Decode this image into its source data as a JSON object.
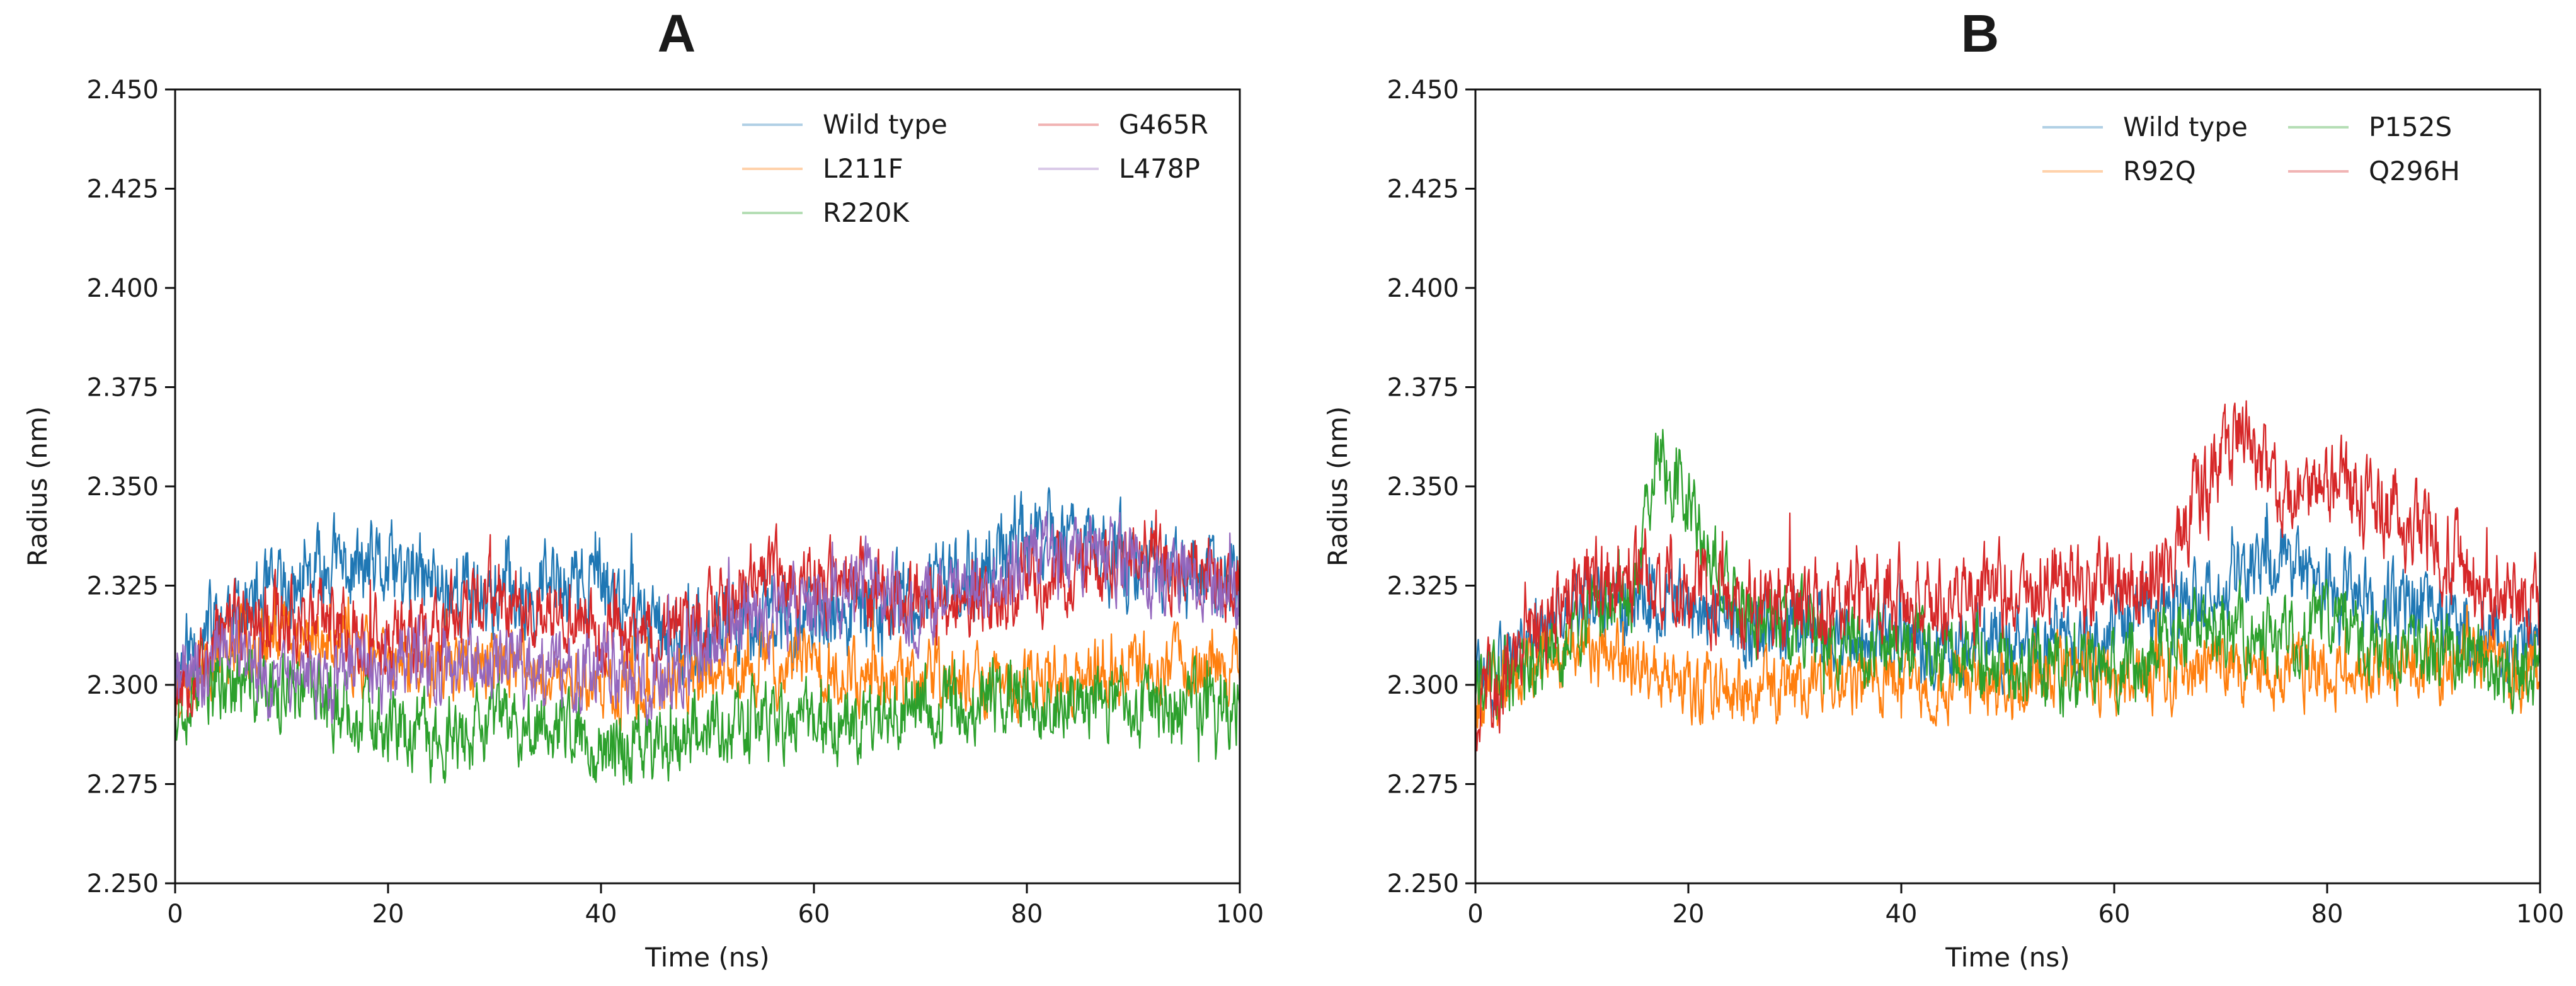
{
  "figure": {
    "description_labels": [
      "A",
      "B"
    ]
  },
  "chart_data": [
    {
      "type": "line",
      "panel_label": "A",
      "title": "",
      "xlabel": "Time (ns)",
      "ylabel": "Radius (nm)",
      "xlim": [
        0,
        100
      ],
      "ylim": [
        2.25,
        2.45
      ],
      "xticks": [
        0,
        20,
        40,
        60,
        80,
        100
      ],
      "xtick_labels": [
        "0",
        "20",
        "40",
        "60",
        "80",
        "100"
      ],
      "yticks": [
        2.25,
        2.275,
        2.3,
        2.325,
        2.35,
        2.375,
        2.4,
        2.425,
        2.45
      ],
      "ytick_labels": [
        "2.250",
        "2.275",
        "2.300",
        "2.325",
        "2.350",
        "2.375",
        "2.400",
        "2.425",
        "2.450"
      ],
      "grid": false,
      "legend_position": "top-right",
      "legend_columns": 2,
      "series": [
        {
          "name": "Wild type",
          "color": "#1f77b4",
          "baseline": [
            [
              0,
              2.305
            ],
            [
              5,
              2.318
            ],
            [
              10,
              2.322
            ],
            [
              15,
              2.33
            ],
            [
              20,
              2.328
            ],
            [
              25,
              2.325
            ],
            [
              30,
              2.323
            ],
            [
              35,
              2.325
            ],
            [
              40,
              2.325
            ],
            [
              45,
              2.315
            ],
            [
              50,
              2.31
            ],
            [
              55,
              2.318
            ],
            [
              60,
              2.315
            ],
            [
              65,
              2.318
            ],
            [
              70,
              2.322
            ],
            [
              75,
              2.328
            ],
            [
              80,
              2.338
            ],
            [
              85,
              2.335
            ],
            [
              90,
              2.33
            ],
            [
              95,
              2.328
            ],
            [
              100,
              2.325
            ]
          ],
          "noise": 0.009,
          "seed": 11
        },
        {
          "name": "L211F",
          "color": "#ff7f0e",
          "baseline": [
            [
              0,
              2.3
            ],
            [
              5,
              2.31
            ],
            [
              10,
              2.315
            ],
            [
              15,
              2.31
            ],
            [
              20,
              2.305
            ],
            [
              25,
              2.305
            ],
            [
              30,
              2.305
            ],
            [
              35,
              2.302
            ],
            [
              40,
              2.3
            ],
            [
              45,
              2.3
            ],
            [
              50,
              2.303
            ],
            [
              55,
              2.305
            ],
            [
              60,
              2.305
            ],
            [
              65,
              2.303
            ],
            [
              70,
              2.302
            ],
            [
              75,
              2.3
            ],
            [
              80,
              2.3
            ],
            [
              85,
              2.302
            ],
            [
              90,
              2.305
            ],
            [
              95,
              2.305
            ],
            [
              100,
              2.305
            ]
          ],
          "noise": 0.007,
          "seed": 23
        },
        {
          "name": "R220K",
          "color": "#2ca02c",
          "baseline": [
            [
              0,
              2.297
            ],
            [
              5,
              2.3
            ],
            [
              10,
              2.298
            ],
            [
              15,
              2.295
            ],
            [
              20,
              2.29
            ],
            [
              25,
              2.285
            ],
            [
              30,
              2.29
            ],
            [
              35,
              2.29
            ],
            [
              40,
              2.285
            ],
            [
              45,
              2.285
            ],
            [
              50,
              2.29
            ],
            [
              55,
              2.29
            ],
            [
              60,
              2.29
            ],
            [
              65,
              2.292
            ],
            [
              70,
              2.295
            ],
            [
              75,
              2.295
            ],
            [
              80,
              2.298
            ],
            [
              85,
              2.295
            ],
            [
              90,
              2.295
            ],
            [
              95,
              2.295
            ],
            [
              100,
              2.295
            ]
          ],
          "noise": 0.008,
          "seed": 37
        },
        {
          "name": "G465R",
          "color": "#d62728",
          "baseline": [
            [
              0,
              2.3
            ],
            [
              5,
              2.315
            ],
            [
              10,
              2.318
            ],
            [
              15,
              2.315
            ],
            [
              20,
              2.312
            ],
            [
              25,
              2.315
            ],
            [
              30,
              2.322
            ],
            [
              35,
              2.318
            ],
            [
              40,
              2.312
            ],
            [
              45,
              2.312
            ],
            [
              50,
              2.318
            ],
            [
              55,
              2.328
            ],
            [
              60,
              2.325
            ],
            [
              65,
              2.325
            ],
            [
              70,
              2.32
            ],
            [
              75,
              2.322
            ],
            [
              80,
              2.325
            ],
            [
              85,
              2.328
            ],
            [
              90,
              2.335
            ],
            [
              95,
              2.33
            ],
            [
              100,
              2.325
            ]
          ],
          "noise": 0.008,
          "seed": 53
        },
        {
          "name": "L478P",
          "color": "#9467bd",
          "baseline": [
            [
              0,
              2.3
            ],
            [
              5,
              2.31
            ],
            [
              10,
              2.3
            ],
            [
              15,
              2.302
            ],
            [
              20,
              2.305
            ],
            [
              25,
              2.305
            ],
            [
              30,
              2.305
            ],
            [
              35,
              2.302
            ],
            [
              40,
              2.305
            ],
            [
              45,
              2.302
            ],
            [
              50,
              2.31
            ],
            [
              55,
              2.318
            ],
            [
              60,
              2.32
            ],
            [
              65,
              2.325
            ],
            [
              70,
              2.32
            ],
            [
              75,
              2.323
            ],
            [
              80,
              2.33
            ],
            [
              85,
              2.335
            ],
            [
              90,
              2.33
            ],
            [
              95,
              2.328
            ],
            [
              100,
              2.325
            ]
          ],
          "noise": 0.008,
          "seed": 71
        }
      ]
    },
    {
      "type": "line",
      "panel_label": "B",
      "title": "",
      "xlabel": "Time (ns)",
      "ylabel": "Radius (nm)",
      "xlim": [
        0,
        100
      ],
      "ylim": [
        2.25,
        2.45
      ],
      "xticks": [
        0,
        20,
        40,
        60,
        80,
        100
      ],
      "xtick_labels": [
        "0",
        "20",
        "40",
        "60",
        "80",
        "100"
      ],
      "yticks": [
        2.25,
        2.275,
        2.3,
        2.325,
        2.35,
        2.375,
        2.4,
        2.425,
        2.45
      ],
      "ytick_labels": [
        "2.250",
        "2.275",
        "2.300",
        "2.325",
        "2.350",
        "2.375",
        "2.400",
        "2.425",
        "2.450"
      ],
      "grid": false,
      "legend_position": "top-right",
      "legend_columns": 2,
      "series": [
        {
          "name": "Wild type",
          "color": "#1f77b4",
          "baseline": [
            [
              0,
              2.3
            ],
            [
              5,
              2.31
            ],
            [
              10,
              2.322
            ],
            [
              15,
              2.322
            ],
            [
              20,
              2.32
            ],
            [
              25,
              2.315
            ],
            [
              30,
              2.315
            ],
            [
              35,
              2.312
            ],
            [
              40,
              2.312
            ],
            [
              45,
              2.31
            ],
            [
              50,
              2.31
            ],
            [
              55,
              2.312
            ],
            [
              60,
              2.315
            ],
            [
              65,
              2.318
            ],
            [
              70,
              2.325
            ],
            [
              75,
              2.33
            ],
            [
              80,
              2.325
            ],
            [
              85,
              2.322
            ],
            [
              90,
              2.318
            ],
            [
              95,
              2.312
            ],
            [
              100,
              2.31
            ]
          ],
          "noise": 0.008,
          "seed": 101
        },
        {
          "name": "R92Q",
          "color": "#ff7f0e",
          "baseline": [
            [
              0,
              2.295
            ],
            [
              5,
              2.305
            ],
            [
              10,
              2.31
            ],
            [
              15,
              2.305
            ],
            [
              20,
              2.3
            ],
            [
              25,
              2.298
            ],
            [
              30,
              2.3
            ],
            [
              35,
              2.302
            ],
            [
              40,
              2.3
            ],
            [
              45,
              2.3
            ],
            [
              50,
              2.3
            ],
            [
              55,
              2.305
            ],
            [
              60,
              2.302
            ],
            [
              65,
              2.302
            ],
            [
              70,
              2.305
            ],
            [
              75,
              2.302
            ],
            [
              80,
              2.302
            ],
            [
              85,
              2.305
            ],
            [
              90,
              2.305
            ],
            [
              95,
              2.305
            ],
            [
              100,
              2.302
            ]
          ],
          "noise": 0.007,
          "seed": 113
        },
        {
          "name": "P152S",
          "color": "#2ca02c",
          "baseline": [
            [
              0,
              2.3
            ],
            [
              5,
              2.305
            ],
            [
              10,
              2.315
            ],
            [
              15,
              2.325
            ],
            [
              17,
              2.36
            ],
            [
              20,
              2.345
            ],
            [
              25,
              2.318
            ],
            [
              30,
              2.315
            ],
            [
              35,
              2.31
            ],
            [
              40,
              2.31
            ],
            [
              45,
              2.308
            ],
            [
              50,
              2.305
            ],
            [
              55,
              2.302
            ],
            [
              60,
              2.305
            ],
            [
              65,
              2.31
            ],
            [
              70,
              2.315
            ],
            [
              75,
              2.312
            ],
            [
              80,
              2.315
            ],
            [
              85,
              2.31
            ],
            [
              90,
              2.308
            ],
            [
              95,
              2.305
            ],
            [
              100,
              2.303
            ]
          ],
          "noise": 0.008,
          "seed": 131
        },
        {
          "name": "Q296H",
          "color": "#d62728",
          "baseline": [
            [
              0,
              2.295
            ],
            [
              5,
              2.31
            ],
            [
              10,
              2.325
            ],
            [
              15,
              2.33
            ],
            [
              20,
              2.325
            ],
            [
              25,
              2.322
            ],
            [
              30,
              2.32
            ],
            [
              35,
              2.322
            ],
            [
              40,
              2.322
            ],
            [
              45,
              2.322
            ],
            [
              50,
              2.325
            ],
            [
              55,
              2.325
            ],
            [
              60,
              2.325
            ],
            [
              65,
              2.33
            ],
            [
              68,
              2.348
            ],
            [
              72,
              2.365
            ],
            [
              75,
              2.35
            ],
            [
              80,
              2.35
            ],
            [
              85,
              2.345
            ],
            [
              90,
              2.335
            ],
            [
              95,
              2.325
            ],
            [
              100,
              2.32
            ]
          ],
          "noise": 0.009,
          "seed": 151
        }
      ]
    }
  ]
}
